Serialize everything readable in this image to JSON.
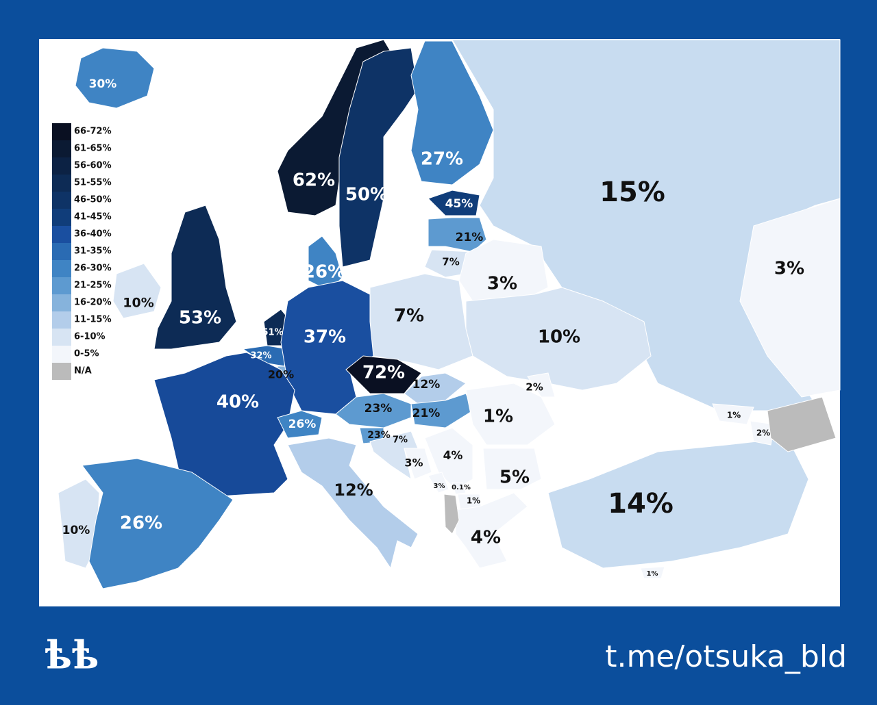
{
  "map": {
    "legend": [
      {
        "label": "66-72%",
        "color": "#0a1022"
      },
      {
        "label": "61-65%",
        "color": "#0b1a33"
      },
      {
        "label": "56-60%",
        "color": "#0c2244"
      },
      {
        "label": "51-55%",
        "color": "#0d2b55"
      },
      {
        "label": "46-50%",
        "color": "#0e3366"
      },
      {
        "label": "41-45%",
        "color": "#103d7a"
      },
      {
        "label": "36-40%",
        "color": "#1a4fa0"
      },
      {
        "label": "31-35%",
        "color": "#2a6bb3"
      },
      {
        "label": "26-30%",
        "color": "#3f84c4"
      },
      {
        "label": "21-25%",
        "color": "#5d9ad0"
      },
      {
        "label": "16-20%",
        "color": "#86b3dc"
      },
      {
        "label": "11-15%",
        "color": "#b3cdea"
      },
      {
        "label": "6-10%",
        "color": "#d7e4f3"
      },
      {
        "label": "0-5%",
        "color": "#f3f6fb"
      },
      {
        "label": "N/A",
        "color": "#bbbbbb"
      }
    ],
    "regions": [
      {
        "label": "30%",
        "color": "#3f84c4"
      },
      {
        "label": "62%",
        "color": "#0b1a33"
      },
      {
        "label": "50%",
        "color": "#0e3366"
      },
      {
        "label": "27%",
        "color": "#3f84c4"
      },
      {
        "label": "15%",
        "color": "#c8dcf0"
      },
      {
        "label": "3%",
        "color": "#f3f6fb"
      },
      {
        "label": "45%",
        "color": "#103d7a"
      },
      {
        "label": "21%",
        "color": "#5d9ad0"
      },
      {
        "label": "7%",
        "color": "#d7e4f3"
      },
      {
        "label": "3%",
        "color": "#f3f6fb"
      },
      {
        "label": "26%",
        "color": "#3f84c4"
      },
      {
        "label": "10%",
        "color": "#d7e4f3"
      },
      {
        "label": "53%",
        "color": "#0d2b55"
      },
      {
        "label": "51%",
        "color": "#0d2b55"
      },
      {
        "label": "32%",
        "color": "#2a6bb3"
      },
      {
        "label": "20%",
        "color": "#86b3dc"
      },
      {
        "label": "37%",
        "color": "#1a4fa0"
      },
      {
        "label": "7%",
        "color": "#d7e4f3"
      },
      {
        "label": "10%",
        "color": "#d7e4f3"
      },
      {
        "label": "72%",
        "color": "#0a1022"
      },
      {
        "label": "12%",
        "color": "#b3cdea"
      },
      {
        "label": "2%",
        "color": "#f3f6fb"
      },
      {
        "label": "40%",
        "color": "#174a99"
      },
      {
        "label": "23%",
        "color": "#5d9ad0"
      },
      {
        "label": "21%",
        "color": "#5d9ad0"
      },
      {
        "label": "1%",
        "color": "#f3f6fb"
      },
      {
        "label": "26%",
        "color": "#3f84c4"
      },
      {
        "label": "23%",
        "color": "#5d9ad0"
      },
      {
        "label": "7%",
        "color": "#d7e4f3"
      },
      {
        "label": "4%",
        "color": "#f3f6fb"
      },
      {
        "label": "3%",
        "color": "#f3f6fb"
      },
      {
        "label": "5%",
        "color": "#f3f6fb"
      },
      {
        "label": "3%",
        "color": "#f3f6fb"
      },
      {
        "label": "0.1%",
        "color": "#f3f6fb"
      },
      {
        "label": "1%",
        "color": "#f3f6fb"
      },
      {
        "label": "12%",
        "color": "#b3cdea"
      },
      {
        "label": "10%",
        "color": "#d7e4f3"
      },
      {
        "label": "26%",
        "color": "#3f84c4"
      },
      {
        "label": "4%",
        "color": "#f3f6fb"
      },
      {
        "label": "14%",
        "color": "#c8dcf0"
      },
      {
        "label": "1%",
        "color": "#f3f6fb"
      },
      {
        "label": "2%",
        "color": "#f3f6fb"
      },
      {
        "label": "1%",
        "color": "#f3f6fb"
      }
    ]
  },
  "footer": {
    "logo": "ѣѣ",
    "link": "t.me/otsuka_bld"
  }
}
